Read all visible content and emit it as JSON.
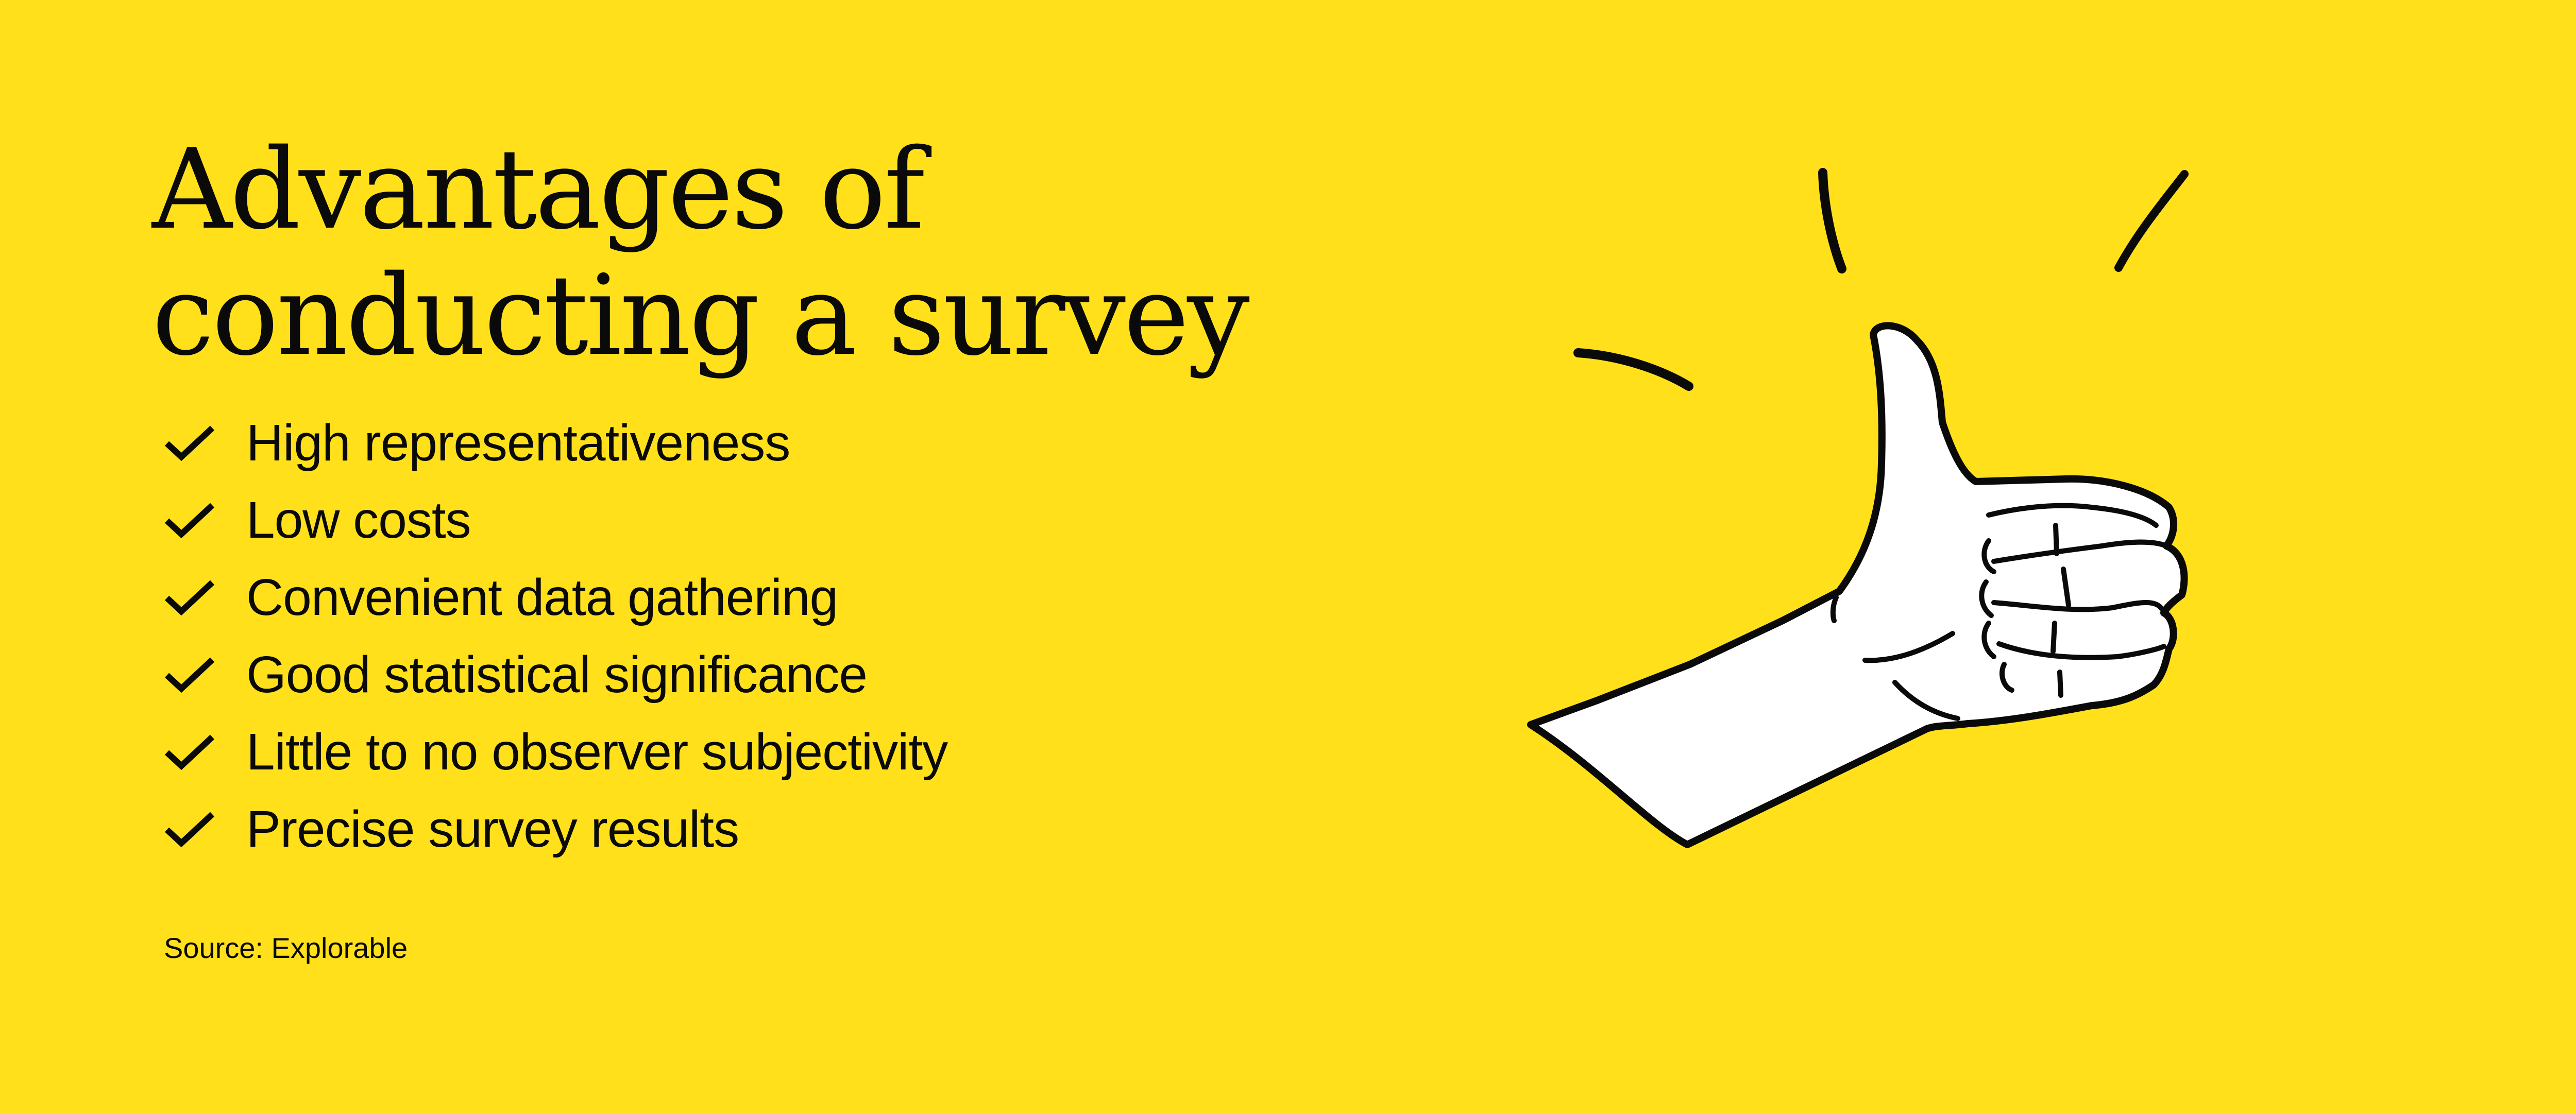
{
  "title": {
    "line1": "Advantages of",
    "line2": "conducting a survey"
  },
  "advantages": [
    {
      "icon": "checkmark-icon",
      "label": "High representativeness"
    },
    {
      "icon": "checkmark-icon",
      "label": "Low costs"
    },
    {
      "icon": "checkmark-icon",
      "label": "Convenient data gathering"
    },
    {
      "icon": "checkmark-icon",
      "label": "Good statistical significance"
    },
    {
      "icon": "checkmark-icon",
      "label": "Little to no observer subjectivity"
    },
    {
      "icon": "checkmark-icon",
      "label": "Precise survey results"
    }
  ],
  "source": "Source: Explorable",
  "illustration": "thumbs-up-hand",
  "colors": {
    "background": "#FFE01B",
    "ink": "#0a0a0a",
    "hand": "#FFFFFF"
  }
}
